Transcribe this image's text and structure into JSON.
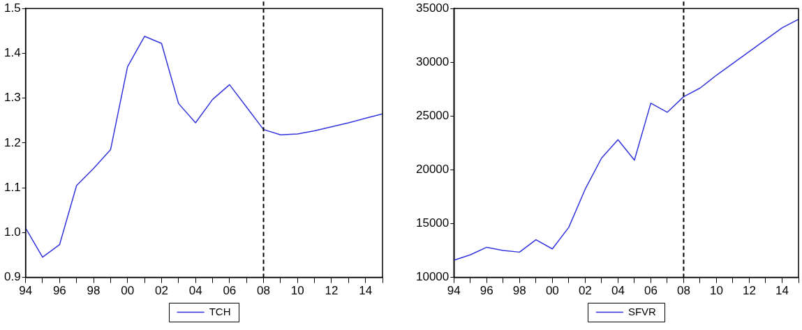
{
  "chart_data": [
    {
      "type": "line",
      "x": [
        1994,
        1995,
        1996,
        1997,
        1998,
        1999,
        2000,
        2001,
        2002,
        2003,
        2004,
        2005,
        2006,
        2007,
        2008,
        2009,
        2010,
        2011,
        2012,
        2013,
        2014,
        2015
      ],
      "series": [
        {
          "name": "TCH",
          "color": "#3333dd",
          "values": [
            1.01,
            0.945,
            0.973,
            1.105,
            1.143,
            1.185,
            1.37,
            1.438,
            1.422,
            1.288,
            1.245,
            1.297,
            1.33,
            1.28,
            1.23,
            1.218,
            1.22,
            1.227,
            1.236,
            1.245,
            1.255,
            1.265
          ]
        }
      ],
      "xlim": [
        1994,
        2015
      ],
      "xticks": [
        {
          "value": 1994,
          "label": "94"
        },
        {
          "value": 1995,
          "label": null
        },
        {
          "value": 1996,
          "label": "96"
        },
        {
          "value": 1997,
          "label": null
        },
        {
          "value": 1998,
          "label": "98"
        },
        {
          "value": 1999,
          "label": null
        },
        {
          "value": 2000,
          "label": "00"
        },
        {
          "value": 2001,
          "label": null
        },
        {
          "value": 2002,
          "label": "02"
        },
        {
          "value": 2003,
          "label": null
        },
        {
          "value": 2004,
          "label": "04"
        },
        {
          "value": 2005,
          "label": null
        },
        {
          "value": 2006,
          "label": "06"
        },
        {
          "value": 2007,
          "label": null
        },
        {
          "value": 2008,
          "label": "08"
        },
        {
          "value": 2009,
          "label": null
        },
        {
          "value": 2010,
          "label": "10"
        },
        {
          "value": 2011,
          "label": null
        },
        {
          "value": 2012,
          "label": "12"
        },
        {
          "value": 2013,
          "label": null
        },
        {
          "value": 2014,
          "label": "14"
        },
        {
          "value": 2015,
          "label": null
        }
      ],
      "ylim": [
        0.9,
        1.5
      ],
      "yticks": [
        {
          "value": 0.9,
          "label": "0.9"
        },
        {
          "value": 1.0,
          "label": "1.0"
        },
        {
          "value": 1.1,
          "label": "1.1"
        },
        {
          "value": 1.2,
          "label": "1.2"
        },
        {
          "value": 1.3,
          "label": "1.3"
        },
        {
          "value": 1.4,
          "label": "1.4"
        },
        {
          "value": 1.5,
          "label": "1.5"
        }
      ],
      "ref_lines": [
        {
          "axis": "x",
          "value": 2008,
          "color": "#000000",
          "line_style": "dashed"
        }
      ],
      "legend": "bottom",
      "grid": false,
      "marker": "none",
      "line_style": "solid"
    },
    {
      "type": "line",
      "x": [
        1994,
        1995,
        1996,
        1997,
        1998,
        1999,
        2000,
        2001,
        2002,
        2003,
        2004,
        2005,
        2006,
        2007,
        2008,
        2009,
        2010,
        2011,
        2012,
        2013,
        2014,
        2015
      ],
      "series": [
        {
          "name": "SFVR",
          "color": "#3333dd",
          "values": [
            11600,
            12100,
            12800,
            12500,
            12350,
            13500,
            12650,
            14650,
            18200,
            21100,
            22800,
            20900,
            26200,
            25350,
            26800,
            27600,
            28800,
            29900,
            31000,
            32100,
            33200,
            34000
          ]
        }
      ],
      "xlim": [
        1994,
        2015
      ],
      "xticks": [
        {
          "value": 1994,
          "label": "94"
        },
        {
          "value": 1995,
          "label": null
        },
        {
          "value": 1996,
          "label": "96"
        },
        {
          "value": 1997,
          "label": null
        },
        {
          "value": 1998,
          "label": "98"
        },
        {
          "value": 1999,
          "label": null
        },
        {
          "value": 2000,
          "label": "00"
        },
        {
          "value": 2001,
          "label": null
        },
        {
          "value": 2002,
          "label": "02"
        },
        {
          "value": 2003,
          "label": null
        },
        {
          "value": 2004,
          "label": "04"
        },
        {
          "value": 2005,
          "label": null
        },
        {
          "value": 2006,
          "label": "06"
        },
        {
          "value": 2007,
          "label": null
        },
        {
          "value": 2008,
          "label": "08"
        },
        {
          "value": 2009,
          "label": null
        },
        {
          "value": 2010,
          "label": "10"
        },
        {
          "value": 2011,
          "label": null
        },
        {
          "value": 2012,
          "label": "12"
        },
        {
          "value": 2013,
          "label": null
        },
        {
          "value": 2014,
          "label": "14"
        },
        {
          "value": 2015,
          "label": null
        }
      ],
      "ylim": [
        10000,
        35000
      ],
      "yticks": [
        10000,
        15000,
        20000,
        25000,
        30000,
        35000
      ],
      "ref_lines": [
        {
          "axis": "x",
          "value": 2008,
          "color": "#000000",
          "line_style": "dashed"
        }
      ],
      "legend": "bottom",
      "grid": false,
      "marker": "none",
      "line_style": "solid"
    }
  ]
}
